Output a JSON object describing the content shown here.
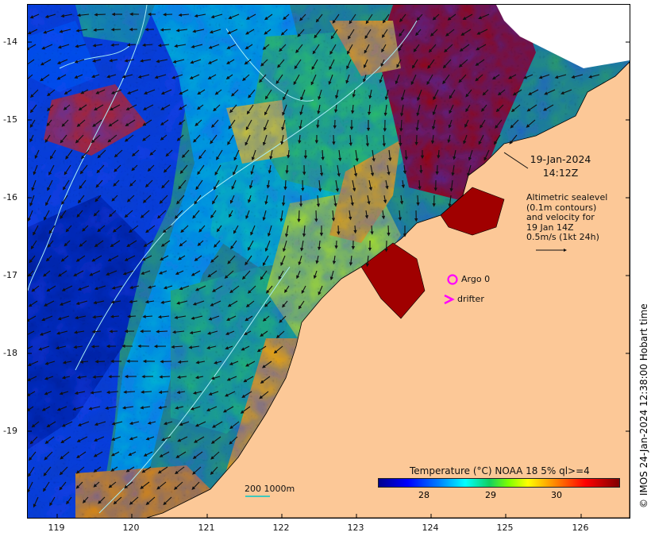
{
  "map": {
    "lat_ticks": [
      "-14",
      "-15",
      "-16",
      "-17",
      "-18",
      "-19"
    ],
    "lon_ticks": [
      "119",
      "120",
      "121",
      "122",
      "123",
      "124",
      "125",
      "126"
    ],
    "colors": {
      "land": "#fcc897",
      "contour": "#a8ecf5",
      "vector": "#111111",
      "marker": "#ff00ff",
      "scale_bar": "#00c8c8"
    }
  },
  "annotations": {
    "date": "19-Jan-2024",
    "time": "14:12Z",
    "altimetry_lines": [
      "Altimetric sealevel",
      "(0.1m contours)",
      "and velocity for",
      "19 Jan 14Z",
      "0.5m/s (1kt 24h)"
    ],
    "argo_label": "Argo 0",
    "drifter_label": "drifter",
    "scale_label": "200  1000m"
  },
  "colorbar": {
    "title": "Temperature (°C) NOAA 18 5% ql>=4",
    "ticks": [
      "28",
      "29",
      "30"
    ],
    "colormap": "jet"
  },
  "credit": "© IMOS 24-Jan-2024 12:38:00 Hobart time"
}
